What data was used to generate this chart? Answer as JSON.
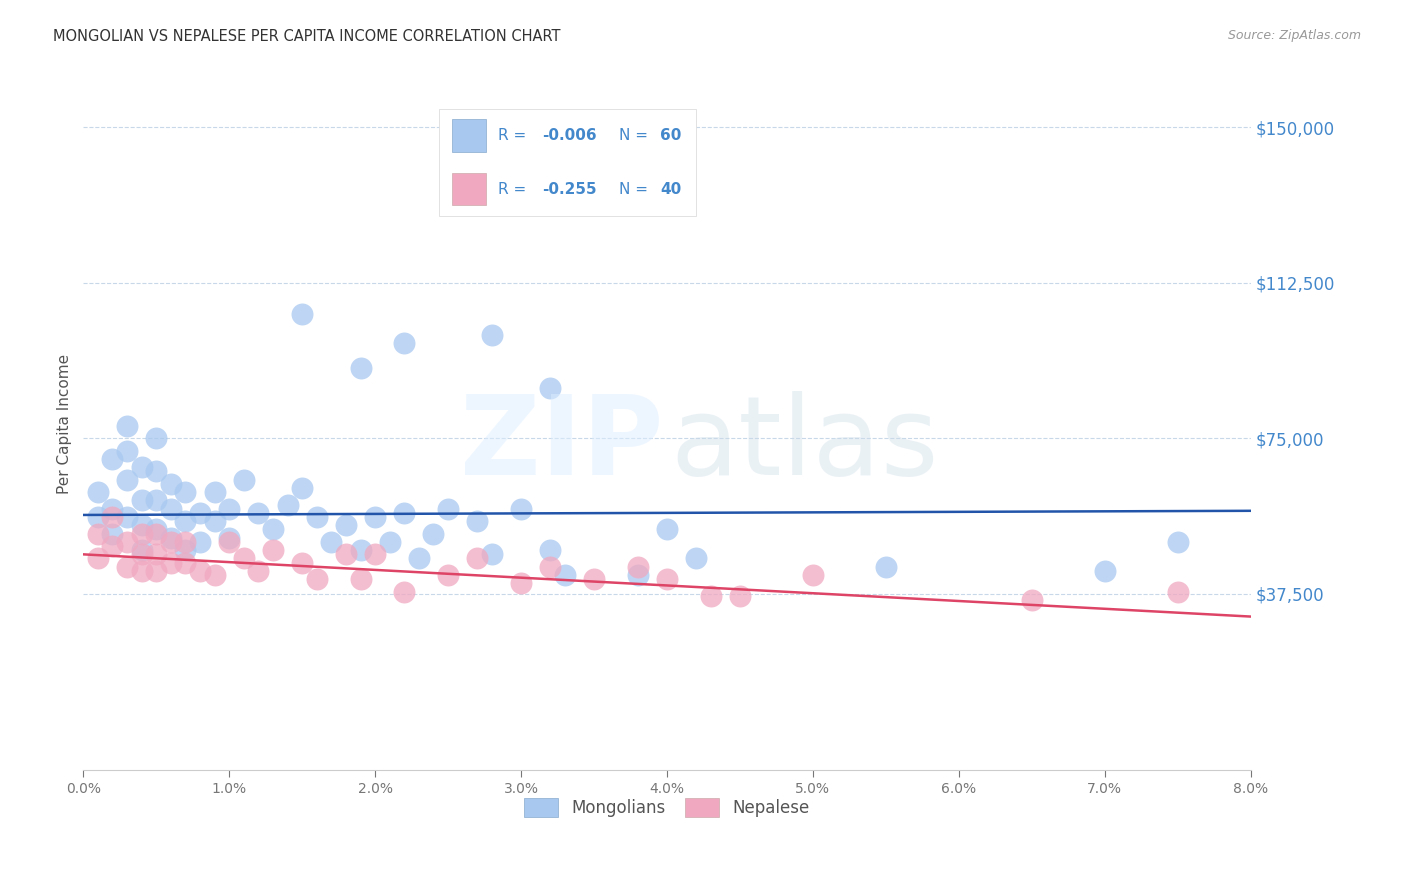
{
  "title": "MONGOLIAN VS NEPALESE PER CAPITA INCOME CORRELATION CHART",
  "source": "Source: ZipAtlas.com",
  "ylabel": "Per Capita Income",
  "mongolian_color": "#a8c8f0",
  "nepalese_color": "#f0a8c0",
  "mongolian_line_color": "#2255aa",
  "nepalese_line_color": "#dd4466",
  "axis_tick_color": "#4488cc",
  "title_color": "#333333",
  "source_color": "#999999",
  "grid_color": "#c8d8e8",
  "legend_text_color": "#4488cc",
  "legend_label_mongolians": "Mongolians",
  "legend_label_nepalese": "Nepalese",
  "R_mongolian": "-0.006",
  "N_mongolian": "60",
  "R_nepalese": "-0.255",
  "N_nepalese": "40",
  "xlim": [
    0.0,
    0.08
  ],
  "ylim": [
    -5000,
    162000
  ],
  "yticks": [
    37500,
    75000,
    112500,
    150000
  ],
  "xticks": [
    0.0,
    0.01,
    0.02,
    0.03,
    0.04,
    0.05,
    0.06,
    0.07,
    0.08
  ],
  "mon_line_y0": 56500,
  "mon_line_y1": 57500,
  "nep_line_y0": 47000,
  "nep_line_y1": 32000,
  "mon_x": [
    0.001,
    0.001,
    0.002,
    0.002,
    0.002,
    0.003,
    0.003,
    0.003,
    0.003,
    0.004,
    0.004,
    0.004,
    0.004,
    0.005,
    0.005,
    0.005,
    0.005,
    0.006,
    0.006,
    0.006,
    0.007,
    0.007,
    0.007,
    0.008,
    0.008,
    0.009,
    0.009,
    0.01,
    0.01,
    0.011,
    0.012,
    0.013,
    0.014,
    0.015,
    0.016,
    0.017,
    0.018,
    0.019,
    0.02,
    0.021,
    0.022,
    0.023,
    0.024,
    0.025,
    0.027,
    0.028,
    0.03,
    0.032,
    0.033,
    0.015,
    0.019,
    0.022,
    0.028,
    0.032,
    0.038,
    0.04,
    0.042,
    0.055,
    0.07,
    0.075
  ],
  "mon_y": [
    56000,
    62000,
    70000,
    58000,
    52000,
    78000,
    72000,
    65000,
    56000,
    68000,
    60000,
    54000,
    48000,
    75000,
    67000,
    60000,
    53000,
    64000,
    58000,
    51000,
    62000,
    55000,
    48000,
    57000,
    50000,
    62000,
    55000,
    58000,
    51000,
    65000,
    57000,
    53000,
    59000,
    63000,
    56000,
    50000,
    54000,
    48000,
    56000,
    50000,
    57000,
    46000,
    52000,
    58000,
    55000,
    47000,
    58000,
    48000,
    42000,
    105000,
    92000,
    98000,
    100000,
    87000,
    42000,
    53000,
    46000,
    44000,
    43000,
    50000
  ],
  "nep_x": [
    0.001,
    0.001,
    0.002,
    0.002,
    0.003,
    0.003,
    0.004,
    0.004,
    0.004,
    0.005,
    0.005,
    0.005,
    0.006,
    0.006,
    0.007,
    0.007,
    0.008,
    0.009,
    0.01,
    0.011,
    0.012,
    0.013,
    0.015,
    0.016,
    0.018,
    0.019,
    0.02,
    0.022,
    0.025,
    0.027,
    0.03,
    0.032,
    0.035,
    0.038,
    0.04,
    0.043,
    0.045,
    0.05,
    0.065,
    0.075
  ],
  "nep_y": [
    52000,
    46000,
    56000,
    49000,
    50000,
    44000,
    52000,
    47000,
    43000,
    52000,
    47000,
    43000,
    50000,
    45000,
    50000,
    45000,
    43000,
    42000,
    50000,
    46000,
    43000,
    48000,
    45000,
    41000,
    47000,
    41000,
    47000,
    38000,
    42000,
    46000,
    40000,
    44000,
    41000,
    44000,
    41000,
    37000,
    37000,
    42000,
    36000,
    38000
  ]
}
